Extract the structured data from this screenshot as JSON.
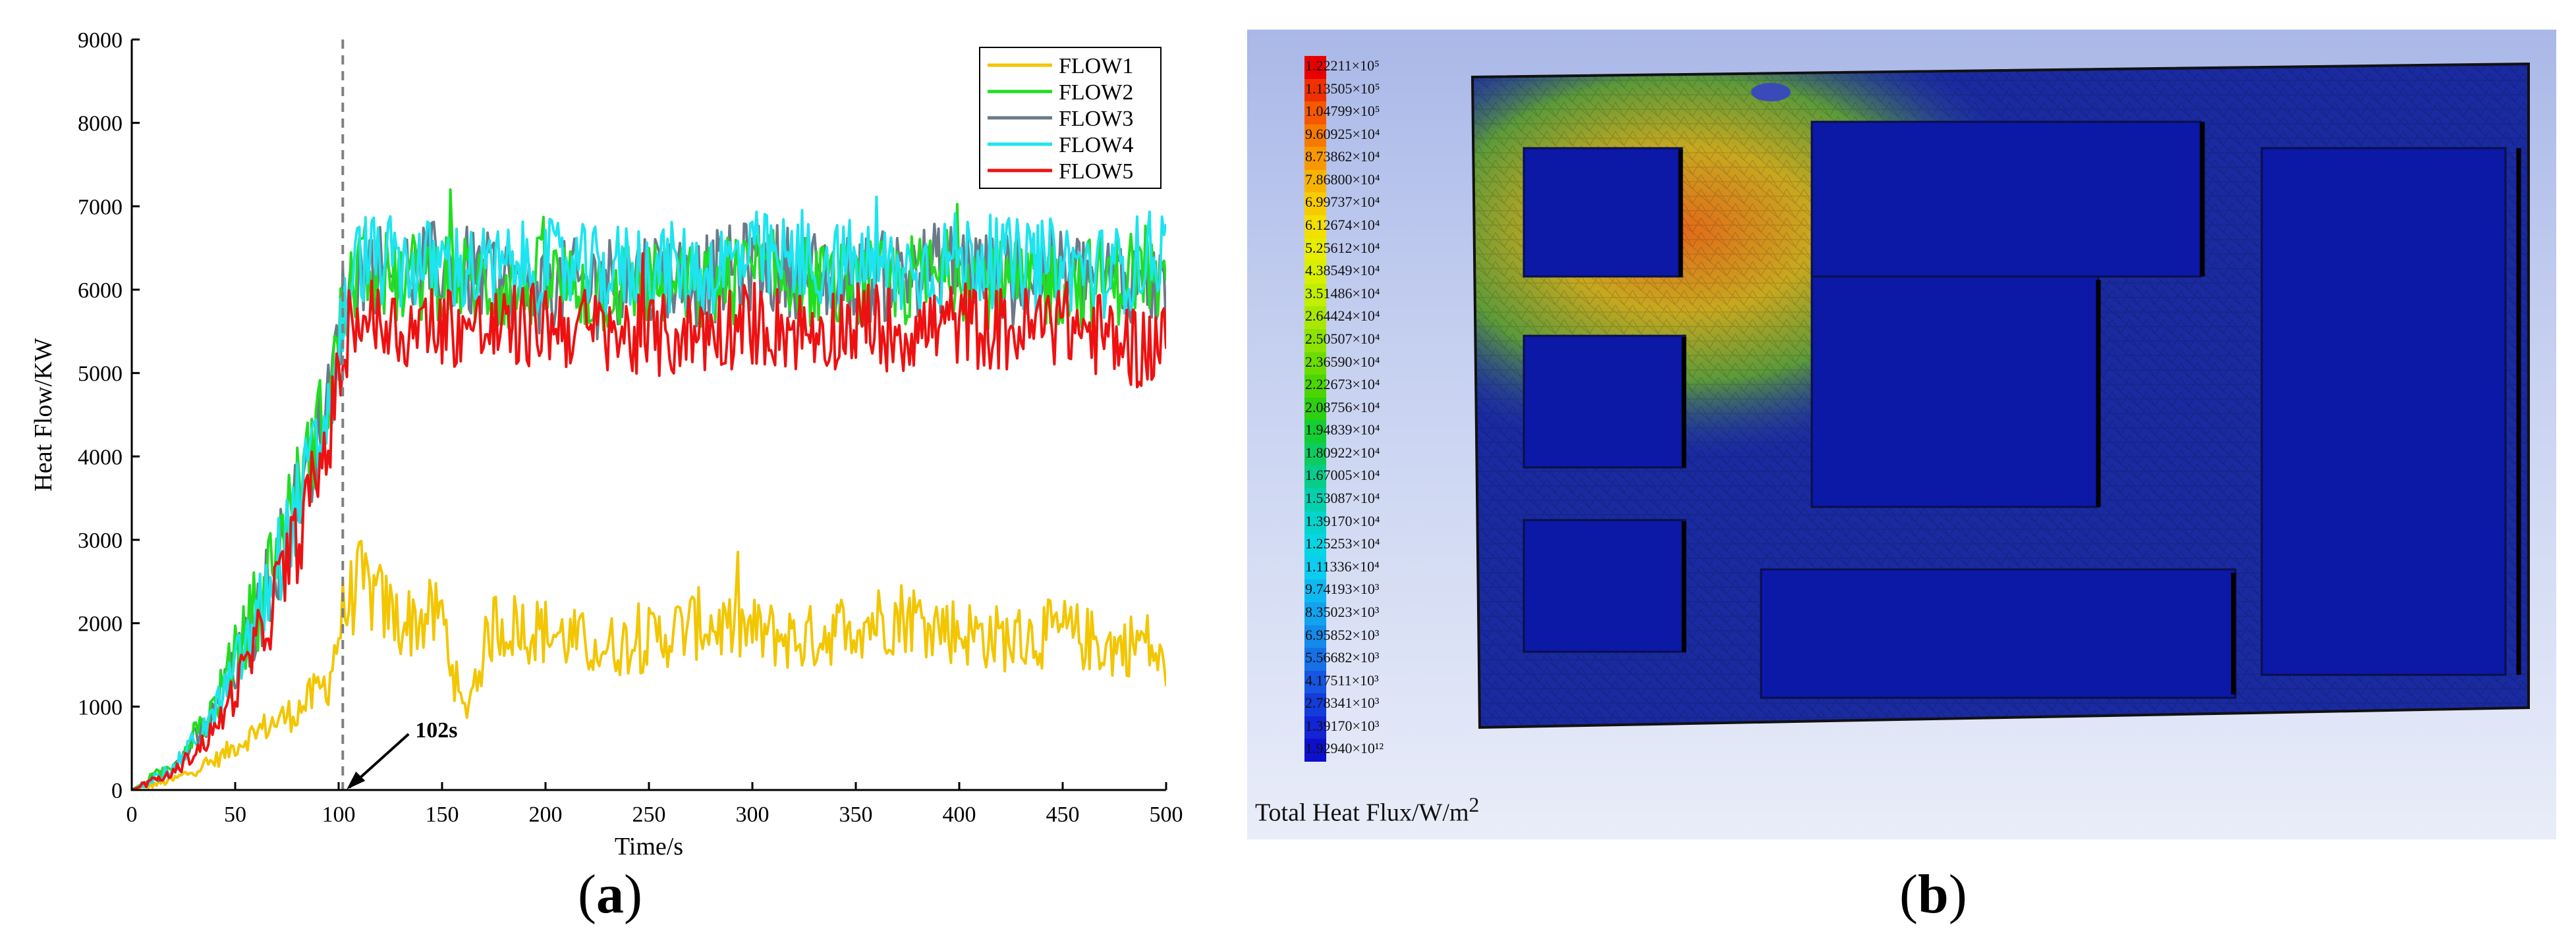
{
  "panels": {
    "a": {
      "label": "a"
    },
    "b": {
      "label": "b"
    }
  },
  "chart_data": [
    {
      "type": "line",
      "xlabel": "Time/s",
      "ylabel": "Heat Flow/KW",
      "xlim": [
        0,
        500
      ],
      "ylim": [
        0,
        9000
      ],
      "xticks": [
        0,
        50,
        100,
        150,
        200,
        250,
        300,
        350,
        400,
        450,
        500
      ],
      "yticks": [
        0,
        1000,
        2000,
        3000,
        4000,
        5000,
        6000,
        7000,
        8000,
        9000
      ],
      "grid": false,
      "legend_position": "top-right",
      "annotation": {
        "text": "102s",
        "x": 102,
        "style": "vertical dashed line with arrow"
      },
      "series": [
        {
          "name": "FLOW1",
          "color": "#f2c600",
          "x": [
            0,
            20,
            40,
            60,
            80,
            95,
            102,
            110,
            130,
            150,
            160,
            175,
            200,
            225,
            250,
            275,
            300,
            325,
            350,
            375,
            400,
            425,
            450,
            475,
            490,
            500
          ],
          "values": [
            0,
            120,
            350,
            700,
            950,
            1300,
            2100,
            2500,
            2000,
            2100,
            900,
            2000,
            1900,
            1700,
            1800,
            2000,
            1900,
            1800,
            2000,
            2100,
            1900,
            1800,
            1900,
            1700,
            1800,
            1400
          ]
        },
        {
          "name": "FLOW2",
          "color": "#22dd22",
          "x": [
            0,
            20,
            40,
            60,
            80,
            95,
            102,
            110,
            130,
            150,
            175,
            200,
            225,
            250,
            275,
            300,
            325,
            350,
            375,
            400,
            425,
            450,
            475,
            490,
            500
          ],
          "values": [
            0,
            300,
            1000,
            2200,
            3600,
            4700,
            5700,
            6300,
            6100,
            6200,
            6000,
            6100,
            6000,
            6100,
            6000,
            6200,
            6100,
            6000,
            6100,
            6200,
            6000,
            6100,
            6100,
            6300,
            5800
          ]
        },
        {
          "name": "FLOW3",
          "color": "#6a7a88",
          "x": [
            0,
            20,
            40,
            60,
            80,
            95,
            102,
            110,
            130,
            150,
            175,
            200,
            225,
            250,
            275,
            300,
            325,
            350,
            375,
            400,
            425,
            450,
            475,
            490,
            500
          ],
          "values": [
            0,
            250,
            900,
            2000,
            3500,
            4600,
            5800,
            6300,
            6200,
            6300,
            6100,
            6000,
            6100,
            6200,
            6100,
            6300,
            6200,
            6100,
            6200,
            6300,
            6100,
            6200,
            6100,
            6200,
            5900
          ]
        },
        {
          "name": "FLOW4",
          "color": "#1de4ee",
          "x": [
            0,
            20,
            40,
            60,
            80,
            95,
            102,
            110,
            130,
            150,
            175,
            200,
            225,
            250,
            275,
            300,
            325,
            350,
            375,
            400,
            425,
            450,
            475,
            490,
            500
          ],
          "values": [
            0,
            250,
            900,
            2000,
            3400,
            4500,
            5600,
            6400,
            6300,
            6300,
            6200,
            6300,
            6200,
            6300,
            6200,
            6400,
            6300,
            6300,
            6200,
            6400,
            6300,
            6300,
            6200,
            6400,
            6500
          ]
        },
        {
          "name": "FLOW5",
          "color": "#ee1111",
          "x": [
            0,
            20,
            40,
            60,
            80,
            95,
            102,
            110,
            130,
            150,
            175,
            200,
            225,
            250,
            275,
            300,
            325,
            350,
            375,
            400,
            425,
            450,
            475,
            490,
            500
          ],
          "values": [
            0,
            200,
            700,
            1700,
            3000,
            4200,
            5200,
            5700,
            5500,
            5600,
            5500,
            5600,
            5500,
            5400,
            5500,
            5600,
            5500,
            5600,
            5500,
            5600,
            5500,
            5600,
            5400,
            5300,
            5500
          ]
        }
      ]
    },
    {
      "type": "heatmap",
      "legend_title_prefix": "Total Heat Flux/W/m",
      "legend_title_sup": "2",
      "legend_levels": [
        {
          "label": "1.22211×10⁵",
          "color": "#e80000"
        },
        {
          "label": "1.13505×10⁵",
          "color": "#ef3000"
        },
        {
          "label": "1.04799×10⁵",
          "color": "#f45800"
        },
        {
          "label": "9.60925×10⁴",
          "color": "#f67a00"
        },
        {
          "label": "8.73862×10⁴",
          "color": "#f79800"
        },
        {
          "label": "7.86800×10⁴",
          "color": "#f8b300"
        },
        {
          "label": "6.99737×10⁴",
          "color": "#f8cb00"
        },
        {
          "label": "6.12674×10⁴",
          "color": "#f3df00"
        },
        {
          "label": "5.25612×10⁴",
          "color": "#e8ec00"
        },
        {
          "label": "4.38549×10⁴",
          "color": "#d8f000"
        },
        {
          "label": "3.51486×10⁴",
          "color": "#c2ee00"
        },
        {
          "label": "2.64424×10⁴",
          "color": "#a8e800"
        },
        {
          "label": "2.50507×10⁴",
          "color": "#8ce200"
        },
        {
          "label": "2.36590×10⁴",
          "color": "#6cdc00"
        },
        {
          "label": "2.22673×10⁴",
          "color": "#4cd600"
        },
        {
          "label": "2.08756×10⁴",
          "color": "#2cd010"
        },
        {
          "label": "1.94839×10⁴",
          "color": "#14cc34"
        },
        {
          "label": "1.80922×10⁴",
          "color": "#0ccc60"
        },
        {
          "label": "1.67005×10⁴",
          "color": "#06cd8a"
        },
        {
          "label": "1.53087×10⁴",
          "color": "#04d0ae"
        },
        {
          "label": "1.39170×10⁴",
          "color": "#04d4cc"
        },
        {
          "label": "1.25253×10⁴",
          "color": "#06d6e4"
        },
        {
          "label": "1.11336×10⁴",
          "color": "#0ccdf0"
        },
        {
          "label": "9.74193×10³",
          "color": "#10b8f0"
        },
        {
          "label": "8.35023×10³",
          "color": "#12a2ee"
        },
        {
          "label": "6.95852×10³",
          "color": "#148aea"
        },
        {
          "label": "5.56682×10³",
          "color": "#1670e6"
        },
        {
          "label": "4.17511×10³",
          "color": "#1656e0"
        },
        {
          "label": "2.78341×10³",
          "color": "#143cda"
        },
        {
          "label": "1.39170×10³",
          "color": "#1224d4"
        },
        {
          "label": "1.92940×10¹²",
          "color": "#0c10cc"
        }
      ]
    }
  ]
}
